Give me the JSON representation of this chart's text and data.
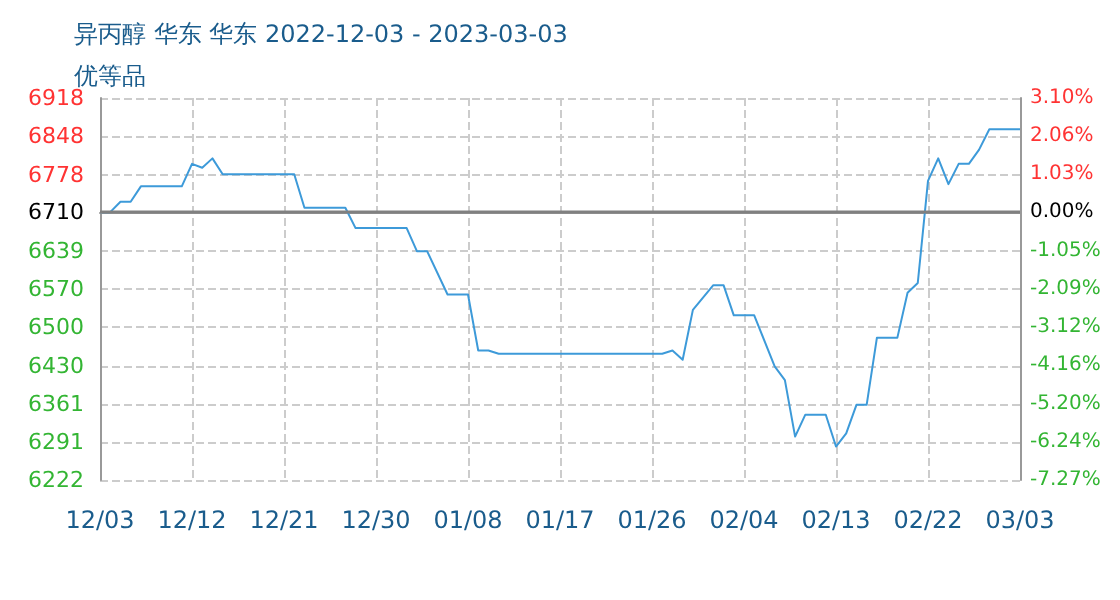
{
  "chart_data": {
    "type": "line",
    "title": "异丙醇 华东 华东 2022-12-03 - 2023-03-03",
    "subtitle": "优等品",
    "x": [
      "2022-12-03",
      "2022-12-04",
      "2022-12-05",
      "2022-12-06",
      "2022-12-07",
      "2022-12-11",
      "2022-12-12",
      "2022-12-13",
      "2022-12-14",
      "2022-12-15",
      "2022-12-22",
      "2022-12-23",
      "2022-12-27",
      "2022-12-28",
      "2023-01-02",
      "2023-01-03",
      "2023-01-04",
      "2023-01-06",
      "2023-01-08",
      "2023-01-09",
      "2023-01-10",
      "2023-01-11",
      "2023-01-27",
      "2023-01-28",
      "2023-01-29",
      "2023-01-30",
      "2023-02-01",
      "2023-02-02",
      "2023-02-03",
      "2023-02-05",
      "2023-02-07",
      "2023-02-08",
      "2023-02-09",
      "2023-02-10",
      "2023-02-12",
      "2023-02-13",
      "2023-02-14",
      "2023-02-15",
      "2023-02-16",
      "2023-02-17",
      "2023-02-19",
      "2023-02-20",
      "2023-02-21",
      "2023-02-22",
      "2023-02-23",
      "2023-02-24",
      "2023-02-25",
      "2023-02-26",
      "2023-02-27",
      "2023-02-28",
      "2023-03-03"
    ],
    "series": [
      {
        "color": "#3d9ad9",
        "values": [
          6710,
          6710,
          6729,
          6729,
          6757,
          6757,
          6798,
          6791,
          6808,
          6779,
          6779,
          6718,
          6718,
          6681,
          6681,
          6639,
          6639,
          6560,
          6560,
          6458,
          6458,
          6452,
          6452,
          6458,
          6441,
          6532,
          6577,
          6577,
          6522,
          6522,
          6429,
          6404,
          6301,
          6341,
          6341,
          6283,
          6307,
          6359,
          6359,
          6481,
          6481,
          6563,
          6581,
          6767,
          6808,
          6761,
          6798,
          6798,
          6824,
          6861,
          6861
        ]
      }
    ],
    "xlim": [
      "2022-12-03",
      "2023-03-03"
    ],
    "xticks": [
      {
        "value": "2022-12-03",
        "label": "12/03"
      },
      {
        "value": "2022-12-12",
        "label": "12/12"
      },
      {
        "value": "2022-12-21",
        "label": "12/21"
      },
      {
        "value": "2022-12-30",
        "label": "12/30"
      },
      {
        "value": "2023-01-08",
        "label": "01/08"
      },
      {
        "value": "2023-01-17",
        "label": "01/17"
      },
      {
        "value": "2023-01-26",
        "label": "01/26"
      },
      {
        "value": "2023-02-04",
        "label": "02/04"
      },
      {
        "value": "2023-02-13",
        "label": "02/13"
      },
      {
        "value": "2023-02-22",
        "label": "02/22"
      },
      {
        "value": "2023-03-03",
        "label": "03/03"
      }
    ],
    "ylim": [
      6222,
      6918
    ],
    "yticks": [
      6222,
      6291,
      6361,
      6430,
      6500,
      6570,
      6639,
      6710,
      6778,
      6848,
      6918
    ],
    "y2lim": [
      -7.27,
      3.1
    ],
    "y2ticks": [
      {
        "value": -7.27,
        "label": "-7.27%"
      },
      {
        "value": -6.24,
        "label": "-6.24%"
      },
      {
        "value": -5.2,
        "label": "-5.20%"
      },
      {
        "value": -4.16,
        "label": "-4.16%"
      },
      {
        "value": -3.12,
        "label": "-3.12%"
      },
      {
        "value": -2.09,
        "label": "-2.09%"
      },
      {
        "value": -1.05,
        "label": "-1.05%"
      },
      {
        "value": 0,
        "label": "0.00%"
      },
      {
        "value": 1.03,
        "label": "1.03%"
      },
      {
        "value": 2.06,
        "label": "2.06%"
      },
      {
        "value": 3.1,
        "label": "3.10%"
      }
    ],
    "ref_lines": [
      {
        "axis": "y",
        "value": 6710,
        "color": "#808080"
      }
    ],
    "grid": true,
    "marker": "none",
    "line_style": "solid"
  }
}
